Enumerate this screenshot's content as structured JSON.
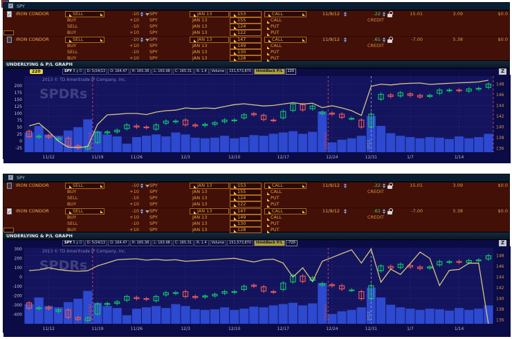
{
  "panels": [
    {
      "title": "SPY",
      "graph_header": "UNDERLYING & P/L GRAPH",
      "checks": [
        true,
        false
      ],
      "pl_badge": "220",
      "edit_box": [
        0,
        3
      ],
      "stats": {
        "symbol": "SPY",
        "period": "5 y D",
        "date": "D: 5/24/13",
        "open": "O: 164.47",
        "high": "H: 165.38",
        "low": "L: 163.98",
        "close": "C: 165.31",
        "range": "R: 1.4",
        "volume_label": "Volume",
        "volume": "151,573,870",
        "thinkback_label": "thinkBack P/L",
        "thinkback_value": "220"
      }
    },
    {
      "title": "SPY",
      "graph_header": "UNDERLYING & P/L GRAPH",
      "checks": [
        false,
        true
      ],
      "pl_badge": null,
      "edit_box": [
        1,
        3
      ],
      "stats": {
        "symbol": "SPY",
        "period": "5 y D",
        "date": "D: 5/24/13",
        "open": "O: 164.47",
        "high": "H: 165.38",
        "low": "L: 163.98",
        "close": "C: 165.31",
        "range": "R: 1.4",
        "volume_label": "Volume",
        "volume": "151,573,870",
        "thinkback_label": "thinkBack P/L",
        "thinkback_value": "-720"
      }
    }
  ],
  "order_table": {
    "groups": [
      {
        "name": "IRON CONDOR",
        "date": "11/9/12",
        "price": ".22",
        "price_label": "CREDIT",
        "pl_open": "15.01",
        "pl_day": "3.09",
        "cost": "$0.0",
        "legs": [
          {
            "side": "SELL",
            "qty": "-10",
            "sym": "SPY",
            "exp": "JAN 13",
            "strike": "153",
            "type": "CALL"
          },
          {
            "side": "BUY",
            "qty": "+10",
            "sym": "SPY",
            "exp": "JAN 13",
            "strike": "155",
            "type": "CALL"
          },
          {
            "side": "SELL",
            "qty": "-10",
            "sym": "SPY",
            "exp": "JAN 13",
            "strike": "124",
            "type": "PUT"
          },
          {
            "side": "BUY",
            "qty": "+10",
            "sym": "SPY",
            "exp": "JAN 13",
            "strike": "122",
            "type": "PUT"
          }
        ]
      },
      {
        "name": "IRON CONDOR",
        "date": "11/9/12",
        "price": ".61",
        "price_label": "CREDIT",
        "pl_open": "-7.00",
        "pl_day": "5.38",
        "cost": "$0.0",
        "legs": [
          {
            "side": "SELL",
            "qty": "-10",
            "sym": "SPY",
            "exp": "JAN 13",
            "strike": "147",
            "type": "CALL"
          },
          {
            "side": "BUY",
            "qty": "+10",
            "sym": "SPY",
            "exp": "JAN 13",
            "strike": "149",
            "type": "CALL"
          },
          {
            "side": "SELL",
            "qty": "-10",
            "sym": "SPY",
            "exp": "JAN 13",
            "strike": "130",
            "type": "PUT"
          },
          {
            "side": "BUY",
            "qty": "+10",
            "sym": "SPY",
            "exp": "JAN 13",
            "strike": "128",
            "type": "PUT"
          }
        ]
      }
    ]
  },
  "chart_data": {
    "type": "candlestick+volume+line",
    "watermark": "SPDRs",
    "copyright": "2013 © TD Ameritrade IP Company, Inc.",
    "zoom_button": "Z",
    "x_ticks": [
      {
        "i": 2,
        "label": "11/12"
      },
      {
        "i": 7,
        "label": "11/19"
      },
      {
        "i": 11,
        "label": "11/26"
      },
      {
        "i": 16,
        "label": "12/3"
      },
      {
        "i": 21,
        "label": "12/10"
      },
      {
        "i": 26,
        "label": "12/17"
      },
      {
        "i": 31,
        "label": "12/24"
      },
      {
        "i": 35,
        "label": "12/31"
      },
      {
        "i": 39,
        "label": "1/7"
      },
      {
        "i": 44,
        "label": "1/14"
      }
    ],
    "right_axis": {
      "ticks": [
        148,
        146,
        144,
        142,
        140,
        138,
        136
      ],
      "range": [
        135.3,
        149.5
      ]
    },
    "candles_oc": [
      [
        139.2,
        138.2
      ],
      [
        138.1,
        138.3
      ],
      [
        138.4,
        138.1
      ],
      [
        137.6,
        137.9
      ],
      [
        137.9,
        136.5
      ],
      [
        136.5,
        136.1
      ],
      [
        135.9,
        136.4
      ],
      [
        137.1,
        139.0
      ],
      [
        138.9,
        139.1
      ],
      [
        139.1,
        139.4
      ],
      [
        139.7,
        140.4
      ],
      [
        140.2,
        140.0
      ],
      [
        140.0,
        139.9
      ],
      [
        139.6,
        140.4
      ],
      [
        140.7,
        141.1
      ],
      [
        141.0,
        141.1
      ],
      [
        141.3,
        140.4
      ],
      [
        140.4,
        140.2
      ],
      [
        140.3,
        140.5
      ],
      [
        140.5,
        140.8
      ],
      [
        141.0,
        141.3
      ],
      [
        141.2,
        141.3
      ],
      [
        141.7,
        142.3
      ],
      [
        142.5,
        142.3
      ],
      [
        142.2,
        141.4
      ],
      [
        141.3,
        141.2
      ],
      [
        141.7,
        142.9
      ],
      [
        143.1,
        144.3
      ],
      [
        144.2,
        143.2
      ],
      [
        143.4,
        143.9
      ],
      [
        142.5,
        142.8
      ],
      [
        142.6,
        142.4
      ],
      [
        142.4,
        141.8
      ],
      [
        141.6,
        141.6
      ],
      [
        141.3,
        140.0
      ],
      [
        140.0,
        142.4
      ],
      [
        145.2,
        146.1
      ],
      [
        146.0,
        145.7
      ],
      [
        145.8,
        146.4
      ],
      [
        146.2,
        145.9
      ],
      [
        145.9,
        145.6
      ],
      [
        145.7,
        145.9
      ],
      [
        146.3,
        146.9
      ],
      [
        146.8,
        146.9
      ],
      [
        146.9,
        146.8
      ],
      [
        146.7,
        147.1
      ],
      [
        147.1,
        147.2
      ],
      [
        147.4,
        148.0
      ]
    ],
    "volume_rel": [
      0.3,
      0.4,
      0.27,
      0.25,
      0.33,
      0.38,
      0.5,
      0.32,
      0.27,
      0.24,
      0.13,
      0.23,
      0.25,
      0.27,
      0.24,
      0.3,
      0.27,
      0.22,
      0.21,
      0.22,
      0.25,
      0.21,
      0.23,
      0.26,
      0.25,
      0.28,
      0.3,
      0.32,
      0.28,
      0.31,
      0.62,
      0.15,
      0.19,
      0.21,
      0.25,
      0.55,
      0.4,
      0.29,
      0.25,
      0.23,
      0.21,
      0.23,
      0.22,
      0.2,
      0.24,
      0.21,
      0.23,
      0.28
    ],
    "panels": [
      {
        "title": "Iron Condor 153/155/124/122 P/L",
        "left_ticks": [
          200,
          175,
          150,
          125,
          100,
          75,
          50,
          25,
          0,
          -25
        ],
        "left_range": [
          -40,
          235
        ],
        "pl": [
          55,
          65,
          35,
          0,
          -22,
          -23,
          -20,
          60,
          95,
          97,
          100,
          100,
          96,
          105,
          110,
          112,
          120,
          117,
          120,
          118,
          125,
          132,
          135,
          131,
          127,
          129,
          134,
          139,
          134,
          137,
          121,
          128,
          120,
          110,
          93,
          198,
          206,
          203,
          207,
          209,
          210,
          205,
          207,
          209,
          211,
          212,
          214,
          220
        ],
        "markers": [
          {
            "i": 6.5,
            "label": "11/16/12",
            "color": "#d84858"
          },
          {
            "i": 30.6,
            "label": "12/21/12",
            "color": "#d84858"
          },
          {
            "i": 35.0,
            "label": "2012",
            "color": "#9aa0c0"
          },
          {
            "i": 47.5,
            "label": "",
            "color": "#d84858"
          }
        ]
      },
      {
        "title": "Iron Condor 147/149/130/128 P/L",
        "left_ticks": [
          300,
          200,
          100,
          0,
          -100,
          -200,
          -300,
          -400
        ],
        "left_range": [
          -500,
          315
        ],
        "pl": [
          70,
          78,
          100,
          80,
          68,
          62,
          68,
          120,
          152,
          185,
          192,
          196,
          182,
          190,
          180,
          186,
          170,
          176,
          182,
          188,
          196,
          202,
          182,
          162,
          186,
          192,
          150,
          0,
          100,
          -48,
          170,
          210,
          252,
          292,
          150,
          300,
          -55,
          85,
          28,
          145,
          268,
          200,
          -90,
          72,
          82,
          148,
          150,
          -720
        ],
        "markers": [
          {
            "i": 6.5,
            "label": "11/16/12",
            "color": "#d84858"
          },
          {
            "i": 30.6,
            "label": "12/21/12",
            "color": "#d84858"
          },
          {
            "i": 35.0,
            "label": "2012",
            "color": "#9aa0c0"
          }
        ]
      }
    ]
  }
}
